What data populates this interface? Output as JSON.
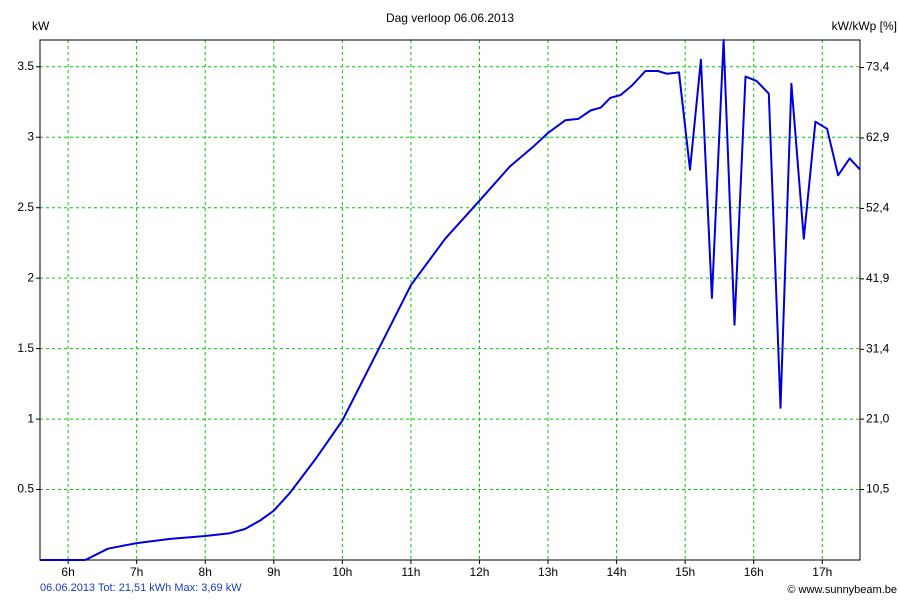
{
  "chart_data": {
    "type": "line",
    "title": "Dag  verloop 06.06.2013",
    "y_label": "kW",
    "y2_label": "kW/kWp [%]",
    "footer_left": "06.06.2013 Tot: 21,51 kWh Max: 3,69 kW",
    "footer_right": "© www.sunnybeam.be",
    "grid": true,
    "x": [
      5.59,
      6.25,
      6.58,
      7.0,
      7.49,
      8.0,
      8.36,
      8.58,
      8.8,
      9.0,
      9.24,
      9.6,
      10.0,
      10.48,
      11.0,
      11.5,
      12.0,
      12.44,
      12.8,
      13.0,
      13.25,
      13.44,
      13.62,
      13.77,
      13.91,
      14.06,
      14.23,
      14.42,
      14.6,
      14.74,
      14.91,
      15.07,
      15.23,
      15.39,
      15.56,
      15.72,
      15.88,
      16.04,
      16.22,
      16.39,
      16.55,
      16.73,
      16.9,
      17.07,
      17.23,
      17.4,
      17.55
    ],
    "series": [
      {
        "color": "#0000dd",
        "values": [
          0,
          0,
          0.08,
          0.12,
          0.15,
          0.17,
          0.19,
          0.22,
          0.28,
          0.35,
          0.48,
          0.71,
          0.99,
          1.45,
          1.95,
          2.28,
          2.55,
          2.79,
          2.94,
          3.03,
          3.12,
          3.13,
          3.19,
          3.21,
          3.28,
          3.3,
          3.37,
          3.47,
          3.47,
          3.45,
          3.46,
          2.77,
          3.55,
          1.86,
          3.69,
          1.67,
          3.43,
          3.4,
          3.31,
          1.08,
          3.38,
          2.28,
          3.11,
          3.06,
          2.73,
          2.85,
          2.77
        ]
      }
    ],
    "xlim": [
      5.59,
      17.55
    ],
    "xticks": [
      {
        "value": 6,
        "label": "6h"
      },
      {
        "value": 7,
        "label": "7h"
      },
      {
        "value": 8,
        "label": "8h"
      },
      {
        "value": 9,
        "label": "9h"
      },
      {
        "value": 10,
        "label": "10h"
      },
      {
        "value": 11,
        "label": "11h"
      },
      {
        "value": 12,
        "label": "12h"
      },
      {
        "value": 13,
        "label": "13h"
      },
      {
        "value": 14,
        "label": "14h"
      },
      {
        "value": 15,
        "label": "15h"
      },
      {
        "value": 16,
        "label": "16h"
      },
      {
        "value": 17,
        "label": "17h"
      }
    ],
    "ylim": [
      0,
      3.69
    ],
    "yticks": [
      0.5,
      1,
      1.5,
      2,
      2.5,
      3,
      3.5
    ],
    "y2lim": [
      0,
      77.5
    ],
    "y2ticks": [
      {
        "value": 10.5,
        "label": "10,5"
      },
      {
        "value": 21,
        "label": "21,0"
      },
      {
        "value": 31.4,
        "label": "31,4"
      },
      {
        "value": 41.9,
        "label": "41,9"
      },
      {
        "value": 52.4,
        "label": "52,4"
      },
      {
        "value": 62.9,
        "label": "62,9"
      },
      {
        "value": 73.4,
        "label": "73,4"
      }
    ]
  }
}
